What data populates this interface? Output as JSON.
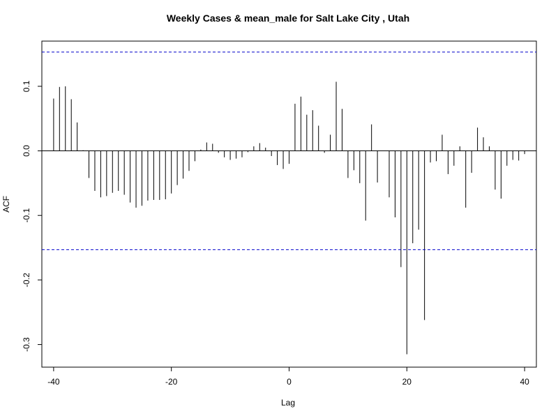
{
  "chart_data": {
    "type": "bar",
    "title": "Weekly Cases & mean_male for Salt Lake City , Utah",
    "xlabel": "Lag",
    "ylabel": "ACF",
    "xlim": [
      -42,
      42
    ],
    "ylim": [
      -0.335,
      0.17
    ],
    "x_ticks": [
      -40,
      -20,
      0,
      20,
      40
    ],
    "y_ticks": [
      -0.3,
      -0.2,
      -0.1,
      0.0,
      0.1
    ],
    "x_tick_labels": [
      "-40",
      "-20",
      "0",
      "20",
      "40"
    ],
    "y_tick_labels": [
      "-0.3",
      "-0.2",
      "-0.1",
      "0.0",
      "0.1"
    ],
    "confidence_bounds": [
      0.153,
      -0.153
    ],
    "confidence_color": "#0000cc",
    "bar_color": "#000000",
    "lags": [
      -40,
      -39,
      -38,
      -37,
      -36,
      -35,
      -34,
      -33,
      -32,
      -31,
      -30,
      -29,
      -28,
      -27,
      -26,
      -25,
      -24,
      -23,
      -22,
      -21,
      -20,
      -19,
      -18,
      -17,
      -16,
      -15,
      -14,
      -13,
      -12,
      -11,
      -10,
      -9,
      -8,
      -7,
      -6,
      -5,
      -4,
      -3,
      -2,
      -1,
      0,
      1,
      2,
      3,
      4,
      5,
      6,
      7,
      8,
      9,
      10,
      11,
      12,
      13,
      14,
      15,
      16,
      17,
      18,
      19,
      20,
      21,
      22,
      23,
      24,
      25,
      26,
      27,
      28,
      29,
      30,
      31,
      32,
      33,
      34,
      35,
      36,
      37,
      38,
      39,
      40
    ],
    "values": [
      0.081,
      0.099,
      0.1,
      0.08,
      0.044,
      0.001,
      -0.042,
      -0.062,
      -0.072,
      -0.07,
      -0.065,
      -0.062,
      -0.068,
      -0.08,
      -0.088,
      -0.085,
      -0.077,
      -0.076,
      -0.076,
      -0.075,
      -0.066,
      -0.053,
      -0.043,
      -0.031,
      -0.016,
      0.002,
      0.013,
      0.011,
      -0.003,
      -0.01,
      -0.014,
      -0.012,
      -0.01,
      -0.002,
      0.007,
      0.012,
      0.005,
      -0.008,
      -0.022,
      -0.028,
      -0.02,
      0.073,
      0.084,
      0.056,
      0.063,
      0.039,
      -0.003,
      0.025,
      0.107,
      0.065,
      -0.042,
      -0.03,
      -0.05,
      -0.108,
      0.041,
      -0.049,
      0.0,
      -0.072,
      -0.103,
      -0.18,
      -0.315,
      -0.143,
      -0.122,
      -0.262,
      -0.018,
      -0.016,
      0.025,
      -0.036,
      -0.023,
      0.007,
      -0.088,
      -0.034,
      0.036,
      0.021,
      0.007,
      -0.06,
      -0.074,
      -0.023,
      -0.014,
      -0.015,
      -0.005
    ]
  }
}
